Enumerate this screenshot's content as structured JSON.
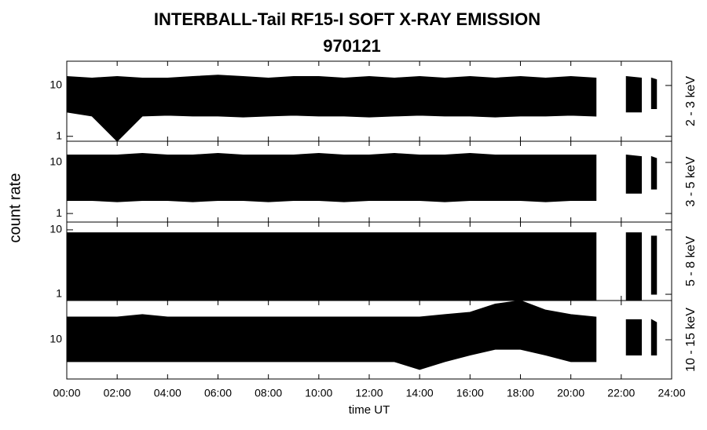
{
  "chart_data": {
    "type": "range",
    "title": "INTERBALL-Tail RF15-I SOFT X-RAY EMISSION",
    "subtitle": "970121",
    "x_label": "time UT",
    "y_label": "count rate",
    "xlim": [
      0,
      24
    ],
    "xticks": [
      {
        "value": 0,
        "label": "00:00"
      },
      {
        "value": 2,
        "label": "02:00"
      },
      {
        "value": 4,
        "label": "04:00"
      },
      {
        "value": 6,
        "label": "06:00"
      },
      {
        "value": 8,
        "label": "08:00"
      },
      {
        "value": 10,
        "label": "10:00"
      },
      {
        "value": 12,
        "label": "12:00"
      },
      {
        "value": 14,
        "label": "14:00"
      },
      {
        "value": 16,
        "label": "16:00"
      },
      {
        "value": 18,
        "label": "18:00"
      },
      {
        "value": 20,
        "label": "20:00"
      },
      {
        "value": 22,
        "label": "22:00"
      },
      {
        "value": 24,
        "label": "24:00"
      }
    ],
    "x": [
      0,
      1,
      2,
      3,
      4,
      5,
      6,
      7,
      8,
      9,
      10,
      11,
      12,
      13,
      14,
      15,
      16,
      17,
      18,
      19,
      20,
      21,
      21.5,
      22.2,
      22.8,
      23.0,
      23.2,
      23.4
    ],
    "log_scale": true,
    "color": "#000000",
    "panels": [
      {
        "label": "2 - 3 keV",
        "ylim": [
          0.8,
          30
        ],
        "yticks": [
          1,
          10
        ],
        "high": [
          15,
          14,
          15,
          14,
          14,
          15,
          16,
          15,
          14,
          15,
          15,
          14,
          15,
          14,
          15,
          14,
          15,
          14,
          15,
          14,
          15,
          14,
          null,
          15,
          14,
          null,
          14,
          13
        ],
        "low": [
          3,
          2.5,
          0.8,
          2.5,
          2.6,
          2.5,
          2.5,
          2.4,
          2.5,
          2.6,
          2.5,
          2.5,
          2.4,
          2.5,
          2.6,
          2.5,
          2.5,
          2.4,
          2.5,
          2.5,
          2.6,
          2.5,
          null,
          3,
          3,
          null,
          3.5,
          3.5
        ]
      },
      {
        "label": "3 - 5 keV",
        "ylim": [
          0.68,
          26
        ],
        "yticks": [
          1,
          10
        ],
        "high": [
          14,
          14,
          14,
          15,
          14,
          14,
          15,
          14,
          14,
          14,
          15,
          14,
          14,
          15,
          14,
          14,
          15,
          14,
          14,
          14,
          14,
          14,
          null,
          14,
          13,
          null,
          13,
          12
        ],
        "low": [
          1.8,
          1.8,
          1.7,
          1.8,
          1.8,
          1.7,
          1.8,
          1.8,
          1.7,
          1.8,
          1.8,
          1.7,
          1.8,
          1.8,
          1.8,
          1.7,
          1.8,
          1.8,
          1.8,
          1.7,
          1.8,
          1.8,
          null,
          2.5,
          2.5,
          null,
          3,
          3
        ]
      },
      {
        "label": "5 - 8 keV",
        "ylim": [
          0.8,
          13.2
        ],
        "yticks": [
          1,
          10
        ],
        "high": [
          9,
          9,
          9,
          9,
          9,
          9,
          9,
          9,
          9,
          9,
          9,
          9,
          9,
          9,
          9,
          9,
          9,
          9,
          9,
          9,
          9,
          9,
          null,
          9,
          9,
          null,
          8,
          8
        ],
        "low": [
          0.8,
          0.8,
          0.8,
          0.8,
          0.8,
          0.8,
          0.8,
          0.8,
          0.8,
          0.8,
          0.8,
          0.8,
          0.8,
          0.8,
          0.8,
          0.8,
          0.8,
          0.8,
          0.8,
          0.8,
          0.8,
          0.8,
          null,
          0.8,
          0.8,
          null,
          1,
          1
        ]
      },
      {
        "label": "10 - 15 keV",
        "ylim": [
          4,
          25
        ],
        "yticks": [
          10
        ],
        "high": [
          17,
          17,
          17,
          18,
          17,
          17,
          17,
          17,
          17,
          17,
          17,
          17,
          17,
          17,
          17,
          18,
          19,
          23,
          25,
          20,
          18,
          17,
          null,
          16,
          16,
          null,
          16,
          15
        ],
        "low": [
          6,
          6,
          6,
          6,
          6,
          6,
          6,
          6,
          6,
          6,
          6,
          6,
          6,
          6,
          5,
          6,
          7,
          8,
          8,
          7,
          6,
          6,
          null,
          7,
          7,
          null,
          7,
          7
        ]
      }
    ]
  }
}
